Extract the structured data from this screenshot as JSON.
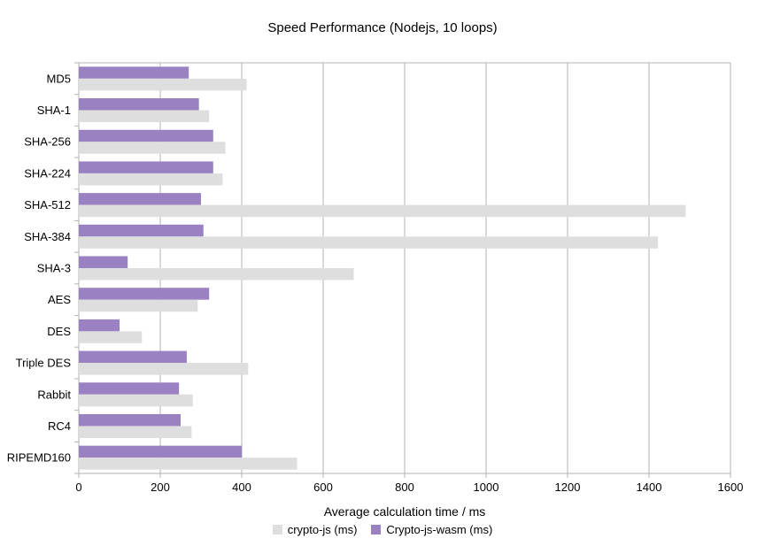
{
  "chart_data": {
    "type": "bar",
    "orientation": "horizontal",
    "title": "Speed Performance (Nodejs, 10 loops)",
    "xlabel": "Average calculation time / ms",
    "categories": [
      "MD5",
      "SHA-1",
      "SHA-256",
      "SHA-224",
      "SHA-512",
      "SHA-384",
      "SHA-3",
      "AES",
      "DES",
      "Triple DES",
      "Rabbit",
      "RC4",
      "RIPEMD160"
    ],
    "series": [
      {
        "name": "crypto-js (ms)",
        "color": "#dedede",
        "values": [
          412,
          320,
          360,
          353,
          1490,
          1422,
          675,
          292,
          155,
          416,
          280,
          277,
          536
        ]
      },
      {
        "name": "Crypto-js-wasm (ms)",
        "color": "#9a82c2",
        "values": [
          270,
          295,
          330,
          330,
          300,
          306,
          120,
          320,
          100,
          265,
          246,
          250,
          400
        ]
      }
    ],
    "xlim": [
      0,
      1600
    ],
    "x_ticks": [
      0,
      200,
      400,
      600,
      800,
      1000,
      1200,
      1400,
      1600
    ],
    "grid": "vertical-gridlines",
    "legend_position": "bottom"
  },
  "colors": {
    "background": "#ffffff",
    "grid": "#b3b3b3",
    "text": "#000000",
    "series_cryptojs": "#dedede",
    "series_wasm": "#9a82c2"
  }
}
